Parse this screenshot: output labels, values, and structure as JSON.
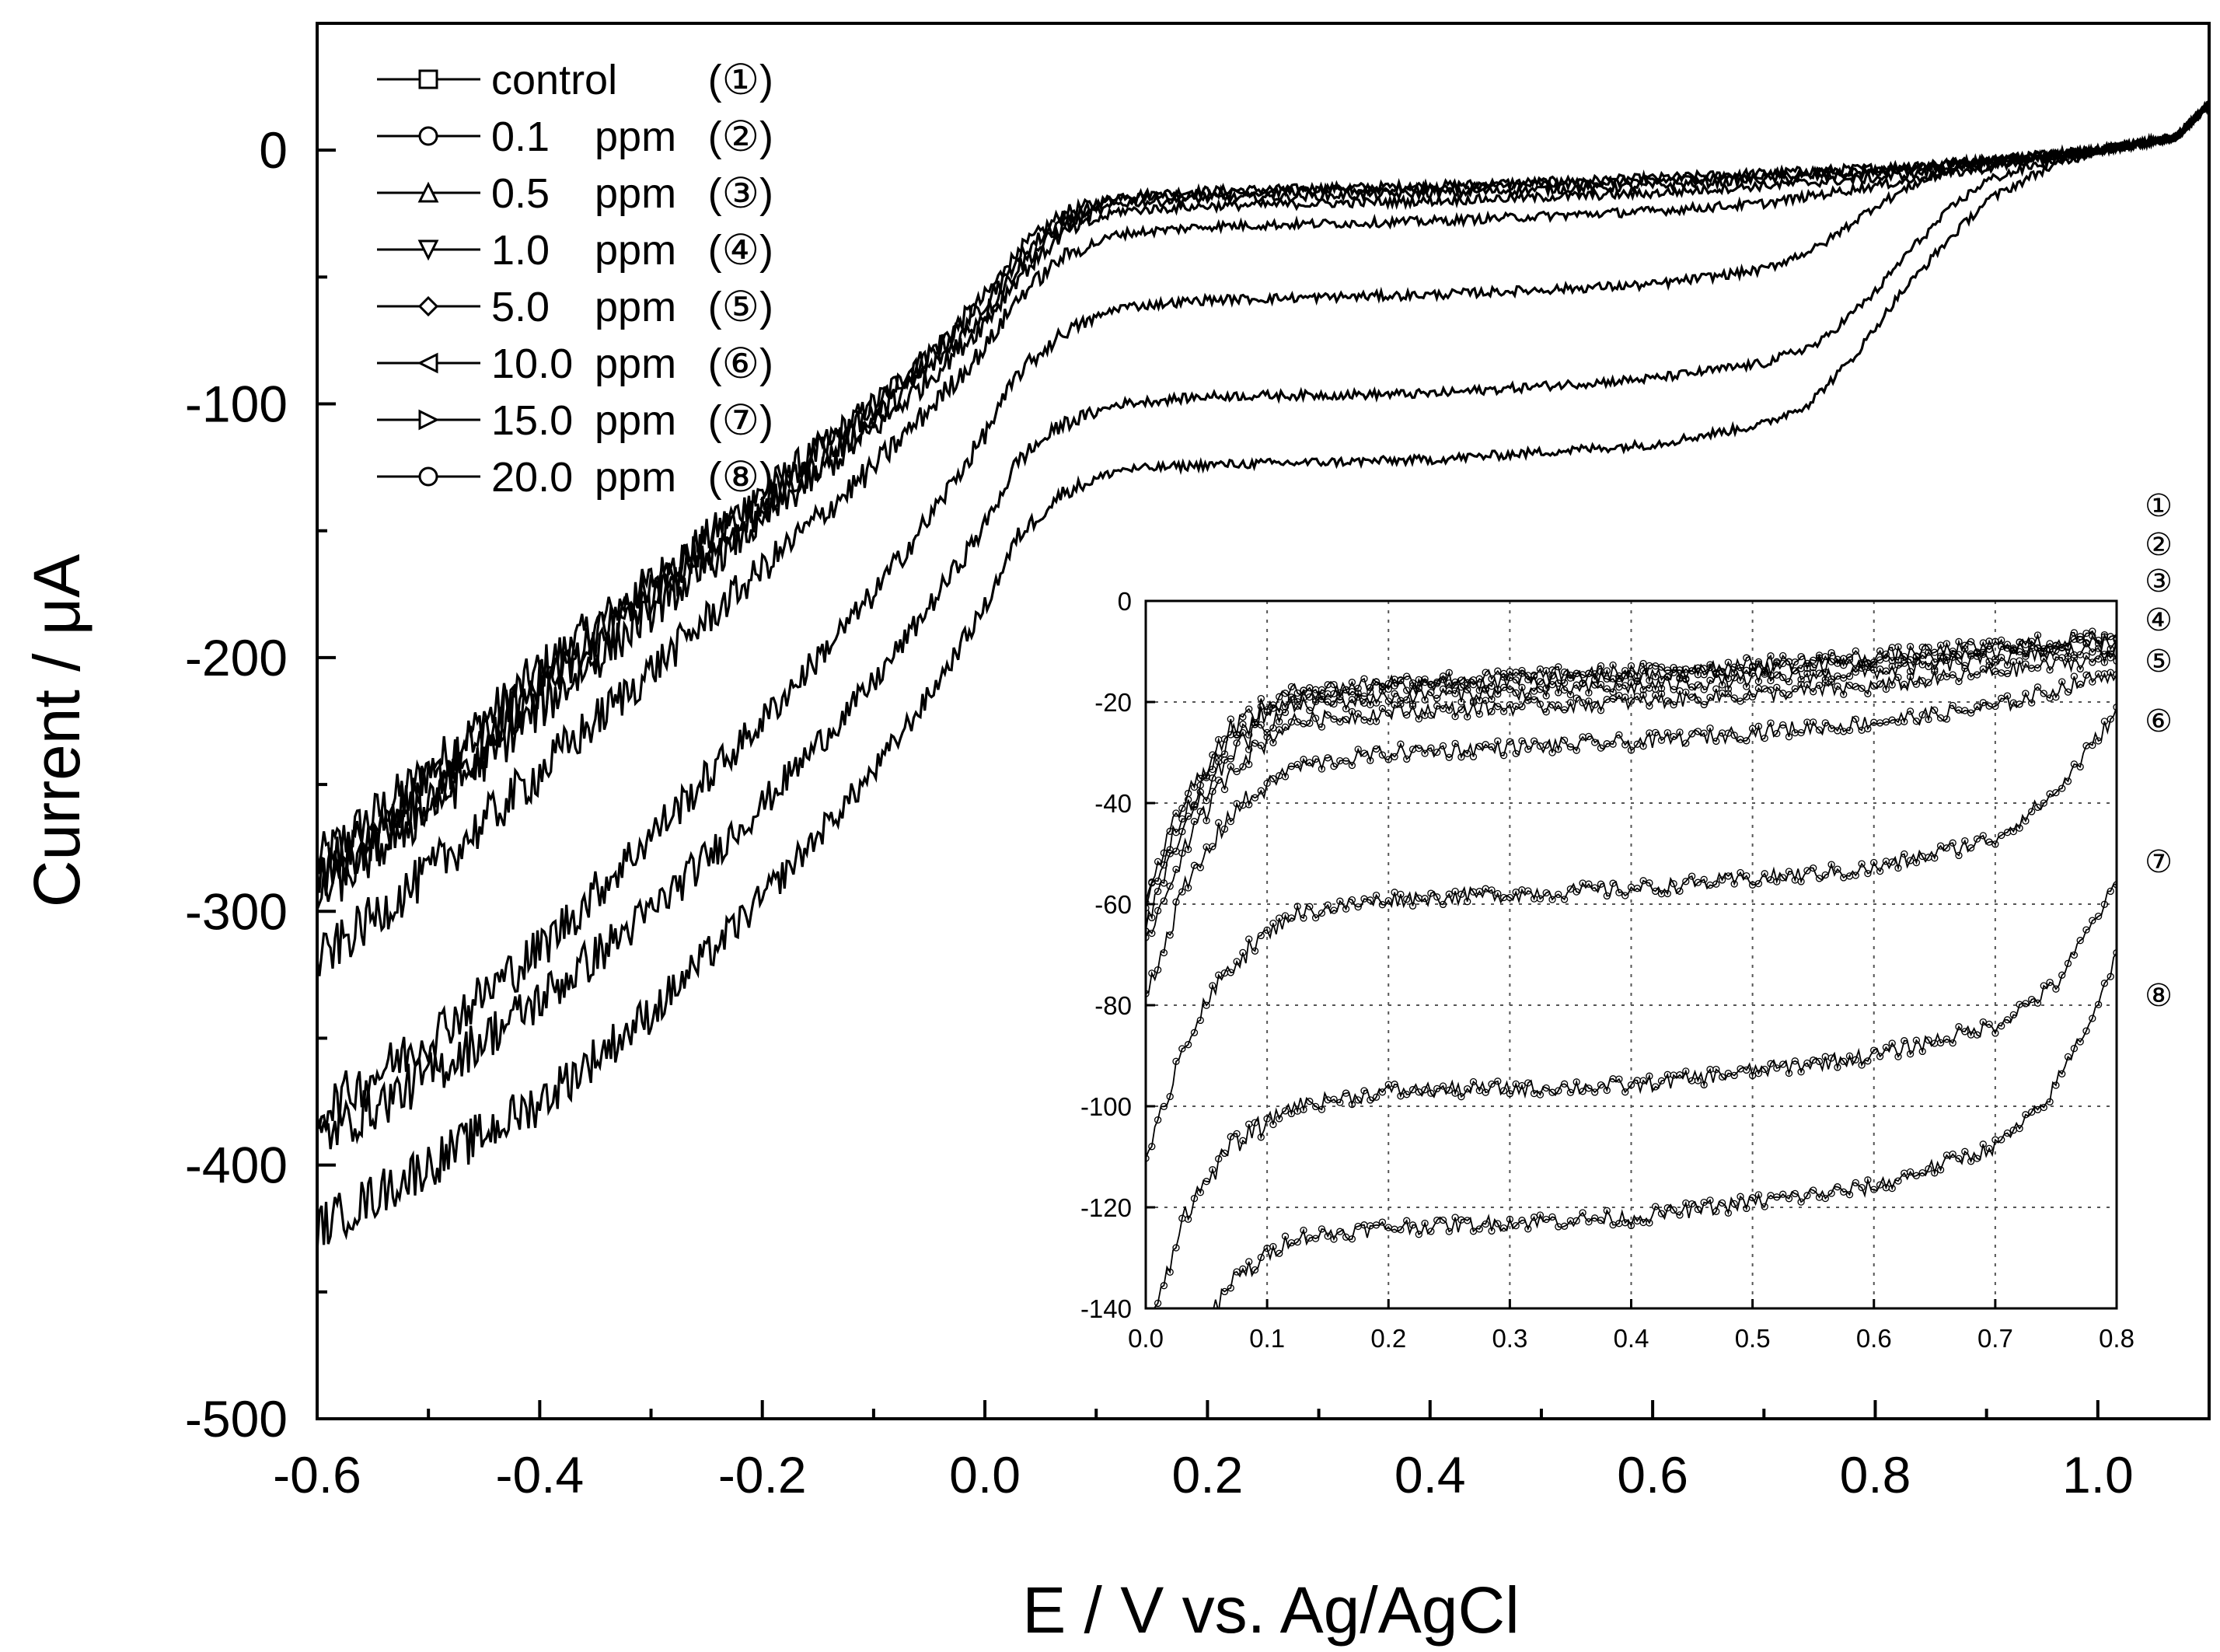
{
  "chart_data": {
    "type": "line",
    "xlabel": "E / V vs. Ag/AgCl",
    "ylabel": "Current / μA",
    "xlim": [
      -0.6,
      1.1
    ],
    "ylim": [
      -500,
      50
    ],
    "x_ticks": [
      -0.6,
      -0.4,
      -0.2,
      0.0,
      0.2,
      0.4,
      0.6,
      0.8,
      1.0
    ],
    "x_tick_labels": [
      "-0.6",
      "-0.4",
      "-0.2",
      "0.0",
      "0.2",
      "0.4",
      "0.6",
      "0.8",
      "1.0"
    ],
    "y_ticks": [
      0,
      -100,
      -200,
      -300,
      -400,
      -500
    ],
    "y_tick_labels": [
      "0",
      "-100",
      "-200",
      "-300",
      "-400",
      "-500"
    ],
    "legend_position": "top-left",
    "series": [
      {
        "name": "control",
        "ppm": "",
        "id": "①",
        "marker": "square",
        "points": [
          [
            -0.6,
            -280
          ],
          [
            -0.5,
            -245
          ],
          [
            -0.4,
            -205
          ],
          [
            -0.3,
            -170
          ],
          [
            -0.2,
            -135
          ],
          [
            -0.1,
            -100
          ],
          [
            -0.05,
            -80
          ],
          [
            0.0,
            -58
          ],
          [
            0.03,
            -40
          ],
          [
            0.07,
            -25
          ],
          [
            0.12,
            -18
          ],
          [
            0.2,
            -16
          ],
          [
            0.4,
            -14
          ],
          [
            0.6,
            -11
          ],
          [
            0.8,
            -7
          ],
          [
            0.9,
            -4
          ],
          [
            1.0,
            0
          ],
          [
            1.07,
            5
          ],
          [
            1.1,
            18
          ]
        ]
      },
      {
        "name": "0.1",
        "ppm": "ppm",
        "id": "②",
        "marker": "circle",
        "points": [
          [
            -0.6,
            -285
          ],
          [
            -0.5,
            -250
          ],
          [
            -0.4,
            -210
          ],
          [
            -0.3,
            -172
          ],
          [
            -0.2,
            -137
          ],
          [
            -0.1,
            -102
          ],
          [
            -0.05,
            -82
          ],
          [
            0.0,
            -60
          ],
          [
            0.03,
            -42
          ],
          [
            0.07,
            -27
          ],
          [
            0.12,
            -19
          ],
          [
            0.2,
            -17
          ],
          [
            0.4,
            -15
          ],
          [
            0.6,
            -12
          ],
          [
            0.8,
            -8
          ],
          [
            0.9,
            -4
          ],
          [
            1.0,
            0
          ],
          [
            1.07,
            5
          ],
          [
            1.1,
            18
          ]
        ]
      },
      {
        "name": "0.5",
        "ppm": "ppm",
        "id": "③",
        "marker": "triangle-up",
        "points": [
          [
            -0.6,
            -290
          ],
          [
            -0.5,
            -255
          ],
          [
            -0.4,
            -215
          ],
          [
            -0.3,
            -178
          ],
          [
            -0.2,
            -142
          ],
          [
            -0.1,
            -106
          ],
          [
            -0.05,
            -86
          ],
          [
            0.0,
            -64
          ],
          [
            0.03,
            -46
          ],
          [
            0.07,
            -30
          ],
          [
            0.12,
            -21
          ],
          [
            0.2,
            -19
          ],
          [
            0.4,
            -17
          ],
          [
            0.6,
            -14
          ],
          [
            0.8,
            -9
          ],
          [
            0.9,
            -5
          ],
          [
            1.0,
            0
          ],
          [
            1.07,
            5
          ],
          [
            1.1,
            18
          ]
        ]
      },
      {
        "name": "1.0",
        "ppm": "ppm",
        "id": "④",
        "marker": "triangle-down",
        "points": [
          [
            -0.6,
            -295
          ],
          [
            -0.5,
            -260
          ],
          [
            -0.4,
            -220
          ],
          [
            -0.3,
            -182
          ],
          [
            -0.2,
            -146
          ],
          [
            -0.1,
            -110
          ],
          [
            -0.05,
            -90
          ],
          [
            0.0,
            -68
          ],
          [
            0.03,
            -50
          ],
          [
            0.07,
            -33
          ],
          [
            0.12,
            -24
          ],
          [
            0.2,
            -22
          ],
          [
            0.4,
            -20
          ],
          [
            0.6,
            -17
          ],
          [
            0.8,
            -11
          ],
          [
            0.9,
            -6
          ],
          [
            1.0,
            0
          ],
          [
            1.07,
            5
          ],
          [
            1.1,
            18
          ]
        ]
      },
      {
        "name": "5.0",
        "ppm": "ppm",
        "id": "⑤",
        "marker": "diamond",
        "points": [
          [
            -0.6,
            -320
          ],
          [
            -0.5,
            -285
          ],
          [
            -0.4,
            -245
          ],
          [
            -0.3,
            -205
          ],
          [
            -0.2,
            -165
          ],
          [
            -0.1,
            -125
          ],
          [
            -0.05,
            -102
          ],
          [
            0.0,
            -78
          ],
          [
            0.03,
            -58
          ],
          [
            0.07,
            -42
          ],
          [
            0.12,
            -33
          ],
          [
            0.2,
            -30
          ],
          [
            0.4,
            -28
          ],
          [
            0.6,
            -24
          ],
          [
            0.7,
            -21
          ],
          [
            0.8,
            -14
          ],
          [
            0.9,
            -7
          ],
          [
            1.0,
            0
          ],
          [
            1.07,
            5
          ],
          [
            1.1,
            18
          ]
        ]
      },
      {
        "name": "10.0",
        "ppm": "ppm",
        "id": "⑥",
        "marker": "triangle-left",
        "points": [
          [
            -0.6,
            -380
          ],
          [
            -0.5,
            -350
          ],
          [
            -0.4,
            -315
          ],
          [
            -0.3,
            -270
          ],
          [
            -0.2,
            -225
          ],
          [
            -0.1,
            -175
          ],
          [
            -0.05,
            -145
          ],
          [
            0.0,
            -112
          ],
          [
            0.03,
            -88
          ],
          [
            0.07,
            -72
          ],
          [
            0.12,
            -62
          ],
          [
            0.2,
            -59
          ],
          [
            0.4,
            -57
          ],
          [
            0.6,
            -53
          ],
          [
            0.7,
            -47
          ],
          [
            0.75,
            -38
          ],
          [
            0.8,
            -22
          ],
          [
            0.85,
            -10
          ],
          [
            0.9,
            -4
          ],
          [
            1.0,
            0
          ],
          [
            1.07,
            5
          ],
          [
            1.1,
            18
          ]
        ]
      },
      {
        "name": "15.0",
        "ppm": "ppm",
        "id": "⑦",
        "marker": "triangle-right",
        "points": [
          [
            -0.6,
            -390
          ],
          [
            -0.5,
            -365
          ],
          [
            -0.4,
            -335
          ],
          [
            -0.3,
            -300
          ],
          [
            -0.2,
            -258
          ],
          [
            -0.1,
            -210
          ],
          [
            -0.05,
            -180
          ],
          [
            0.0,
            -148
          ],
          [
            0.03,
            -122
          ],
          [
            0.07,
            -108
          ],
          [
            0.12,
            -100
          ],
          [
            0.2,
            -97
          ],
          [
            0.4,
            -96
          ],
          [
            0.6,
            -90
          ],
          [
            0.7,
            -84
          ],
          [
            0.75,
            -76
          ],
          [
            0.8,
            -56
          ],
          [
            0.83,
            -40
          ],
          [
            0.87,
            -22
          ],
          [
            0.9,
            -12
          ],
          [
            0.95,
            -5
          ],
          [
            1.0,
            0
          ],
          [
            1.07,
            5
          ],
          [
            1.1,
            18
          ]
        ]
      },
      {
        "name": "20.0",
        "ppm": "ppm",
        "id": "⑧",
        "marker": "circle",
        "points": [
          [
            -0.6,
            -425
          ],
          [
            -0.5,
            -400
          ],
          [
            -0.4,
            -375
          ],
          [
            -0.3,
            -340
          ],
          [
            -0.2,
            -295
          ],
          [
            -0.1,
            -245
          ],
          [
            -0.05,
            -215
          ],
          [
            0.0,
            -180
          ],
          [
            0.03,
            -152
          ],
          [
            0.07,
            -135
          ],
          [
            0.12,
            -126
          ],
          [
            0.2,
            -124
          ],
          [
            0.4,
            -122
          ],
          [
            0.6,
            -116
          ],
          [
            0.7,
            -108
          ],
          [
            0.74,
            -100
          ],
          [
            0.78,
            -82
          ],
          [
            0.82,
            -58
          ],
          [
            0.86,
            -38
          ],
          [
            0.9,
            -20
          ],
          [
            0.95,
            -8
          ],
          [
            1.0,
            0
          ],
          [
            1.07,
            5
          ],
          [
            1.1,
            18
          ]
        ]
      }
    ],
    "inset": {
      "xlim": [
        0.0,
        0.8
      ],
      "ylim": [
        -140,
        0
      ],
      "x_ticks": [
        0.0,
        0.1,
        0.2,
        0.3,
        0.4,
        0.5,
        0.6,
        0.7,
        0.8
      ],
      "x_tick_labels": [
        "0.0",
        "0.1",
        "0.2",
        "0.3",
        "0.4",
        "0.5",
        "0.6",
        "0.7",
        "0.8"
      ],
      "y_ticks": [
        0,
        -20,
        -40,
        -60,
        -80,
        -100,
        -120,
        -140
      ],
      "y_tick_labels": [
        "0",
        "-20",
        "-40",
        "-60",
        "-80",
        "-100",
        "-120",
        "-140"
      ],
      "grid": true,
      "curve_labels": [
        "①",
        "②",
        "③",
        "④",
        "⑤",
        "⑥",
        "⑦",
        "⑧"
      ]
    }
  }
}
